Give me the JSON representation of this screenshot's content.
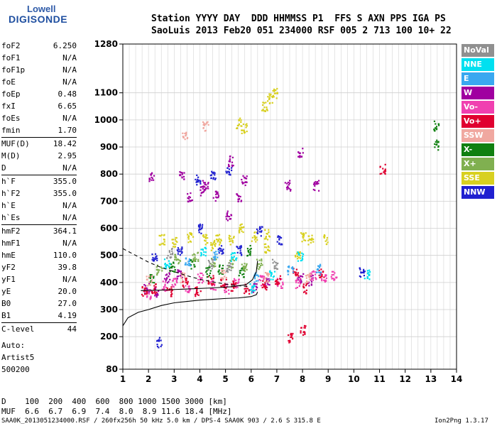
{
  "logo": {
    "line1": "Lowell",
    "line2": "DIGISONDE"
  },
  "header": {
    "labels_row": "Station YYYY DAY  DDD HHMMSS P1  FFS S AXN PPS IGA PS",
    "values_row": "SaoLuis 2013 Feb20 051 234000 RSF 005 2 713 100 10+ 22"
  },
  "params": [
    {
      "name": "foF2",
      "value": "6.250"
    },
    {
      "name": "foF1",
      "value": "N/A"
    },
    {
      "name": "foF1p",
      "value": "N/A"
    },
    {
      "name": "foE",
      "value": "N/A"
    },
    {
      "name": "foEp",
      "value": "0.48"
    },
    {
      "name": "fxI",
      "value": "6.65"
    },
    {
      "name": "foEs",
      "value": "N/A"
    },
    {
      "name": "fmin",
      "value": "1.70"
    },
    {
      "name": "MUF(D)",
      "value": "18.42"
    },
    {
      "name": "M(D)",
      "value": "2.95"
    },
    {
      "name": "D",
      "value": "N/A"
    },
    {
      "name": "h`F",
      "value": "355.0"
    },
    {
      "name": "h`F2",
      "value": "355.0"
    },
    {
      "name": "h`E",
      "value": "N/A"
    },
    {
      "name": "h`Es",
      "value": "N/A"
    },
    {
      "name": "hmF2",
      "value": "364.1"
    },
    {
      "name": "hmF1",
      "value": "N/A"
    },
    {
      "name": "hmE",
      "value": "110.0"
    },
    {
      "name": "yF2",
      "value": "39.8"
    },
    {
      "name": "yF1",
      "value": "N/A"
    },
    {
      "name": "yE",
      "value": "20.0"
    },
    {
      "name": "B0",
      "value": "27.0"
    },
    {
      "name": "B1",
      "value": "4.19"
    },
    {
      "name": "C-level",
      "value": "44"
    }
  ],
  "autoscale": {
    "line1": "Auto:",
    "line2": "Artist5",
    "line3": "500200"
  },
  "legend": [
    {
      "label": "NoVal",
      "color": "#909090"
    },
    {
      "label": "NNE",
      "color": "#00e0f0"
    },
    {
      "label": "E",
      "color": "#3aa8f0"
    },
    {
      "label": "W",
      "color": "#a000a0"
    },
    {
      "label": "Vo-",
      "color": "#f040b0"
    },
    {
      "label": "Vo+",
      "color": "#e00030"
    },
    {
      "label": "SSW",
      "color": "#f0a8a0"
    },
    {
      "label": "X-",
      "color": "#108010"
    },
    {
      "label": "X+",
      "color": "#80b050"
    },
    {
      "label": "SSE",
      "color": "#d8d020"
    },
    {
      "label": "NNW",
      "color": "#2020d0"
    }
  ],
  "muf_table": {
    "d_label": "D",
    "d_values": "100  200  400  600  800 1000 1500 3000 [km]",
    "muf_label": "MUF",
    "muf_values": "6.6  6.7  6.9  7.4  8.0  8.9 11.6 18.4 [MHz]"
  },
  "footer": {
    "left": "SAA0K_2013051234000.RSF / 260fx256h 50 kHz 5.0 km / DPS-4 SAA0K 903 / 2.6 S 315.8 E",
    "right": "Ion2Png 1.3.17"
  },
  "chart_data": {
    "type": "scatter",
    "xlim": [
      1,
      14
    ],
    "ylim": [
      80,
      1280
    ],
    "x_ticks": [
      1,
      2,
      3,
      4,
      5,
      6,
      7,
      8,
      9,
      10,
      11,
      12,
      13,
      14
    ],
    "y_ticks": [
      80,
      200,
      300,
      400,
      500,
      600,
      700,
      800,
      900,
      1000,
      1100,
      1280
    ],
    "grid": true,
    "series": [
      {
        "name": "W",
        "points": [
          [
            1.9,
            380
          ],
          [
            2.3,
            365
          ],
          [
            2.7,
            420
          ],
          [
            3.2,
            430
          ],
          [
            3.6,
            720
          ],
          [
            4.1,
            740
          ],
          [
            4.6,
            720
          ],
          [
            5.1,
            650
          ],
          [
            5.5,
            720
          ],
          [
            6.1,
            380
          ],
          [
            6.6,
            400
          ],
          [
            7.9,
            420
          ],
          [
            8.3,
            410
          ],
          [
            2.1,
            790
          ],
          [
            3.3,
            800
          ],
          [
            4.2,
            760
          ],
          [
            5.2,
            850
          ],
          [
            5.7,
            780
          ],
          [
            7.4,
            760
          ],
          [
            7.9,
            880
          ],
          [
            8.5,
            760
          ]
        ]
      },
      {
        "name": "Vo-",
        "points": [
          [
            2.0,
            360
          ],
          [
            2.6,
            390
          ],
          [
            3.0,
            400
          ],
          [
            3.5,
            380
          ],
          [
            4.0,
            420
          ],
          [
            4.5,
            390
          ],
          [
            5.0,
            380
          ],
          [
            5.4,
            400
          ],
          [
            6.4,
            410
          ],
          [
            7.1,
            400
          ],
          [
            7.8,
            400
          ],
          [
            8.4,
            430
          ],
          [
            8.8,
            420
          ],
          [
            9.2,
            430
          ]
        ]
      },
      {
        "name": "Vo+",
        "points": [
          [
            1.8,
            370
          ],
          [
            2.2,
            380
          ],
          [
            2.8,
            370
          ],
          [
            3.4,
            400
          ],
          [
            3.9,
            370
          ],
          [
            4.4,
            410
          ],
          [
            4.9,
            400
          ],
          [
            5.3,
            390
          ],
          [
            5.8,
            380
          ],
          [
            6.5,
            390
          ],
          [
            7.0,
            410
          ],
          [
            7.7,
            440
          ],
          [
            8.1,
            380
          ],
          [
            8.7,
            440
          ],
          [
            11.1,
            820
          ],
          [
            7.5,
            200
          ],
          [
            8.0,
            225
          ]
        ]
      },
      {
        "name": "X-",
        "points": [
          [
            2.1,
            420
          ],
          [
            2.9,
            460
          ],
          [
            3.7,
            470
          ],
          [
            4.3,
            440
          ],
          [
            4.8,
            450
          ],
          [
            5.6,
            440
          ],
          [
            5.9,
            520
          ],
          [
            13.2,
            980
          ],
          [
            13.2,
            910
          ]
        ]
      },
      {
        "name": "X+",
        "points": [
          [
            2.4,
            450
          ],
          [
            3.1,
            490
          ],
          [
            3.8,
            500
          ],
          [
            4.5,
            480
          ],
          [
            5.2,
            470
          ],
          [
            5.7,
            460
          ],
          [
            6.3,
            470
          ]
        ]
      },
      {
        "name": "SSE",
        "points": [
          [
            2.5,
            560
          ],
          [
            3.0,
            550
          ],
          [
            3.6,
            570
          ],
          [
            4.2,
            560
          ],
          [
            4.7,
            560
          ],
          [
            5.2,
            560
          ],
          [
            5.6,
            600
          ],
          [
            6.1,
            570
          ],
          [
            6.6,
            580
          ],
          [
            6.7,
            1080
          ],
          [
            6.9,
            1100
          ],
          [
            6.5,
            1050
          ],
          [
            8.0,
            570
          ],
          [
            8.3,
            560
          ],
          [
            8.9,
            560
          ],
          [
            5.5,
            990
          ],
          [
            5.7,
            970
          ],
          [
            4.5,
            540
          ],
          [
            6.6,
            530
          ],
          [
            7.8,
            500
          ]
        ]
      },
      {
        "name": "NNW",
        "points": [
          [
            2.4,
            180
          ],
          [
            2.2,
            500
          ],
          [
            3.2,
            520
          ],
          [
            4.0,
            600
          ],
          [
            4.8,
            520
          ],
          [
            5.5,
            520
          ],
          [
            6.3,
            590
          ],
          [
            7.1,
            560
          ],
          [
            5.1,
            810
          ],
          [
            4.5,
            800
          ],
          [
            3.9,
            780
          ],
          [
            10.3,
            440
          ]
        ]
      },
      {
        "name": "NNE",
        "points": [
          [
            2.7,
            470
          ],
          [
            4.1,
            520
          ],
          [
            5.3,
            500
          ],
          [
            6.0,
            380
          ],
          [
            6.8,
            430
          ],
          [
            7.9,
            500
          ],
          [
            10.5,
            430
          ]
        ]
      },
      {
        "name": "E",
        "points": [
          [
            3.5,
            480
          ],
          [
            4.6,
            500
          ],
          [
            6.2,
            420
          ],
          [
            7.5,
            450
          ],
          [
            8.6,
            450
          ]
        ]
      },
      {
        "name": "SSW",
        "points": [
          [
            2.0,
            410
          ],
          [
            3.3,
            420
          ],
          [
            4.9,
            430
          ],
          [
            6.6,
            420
          ],
          [
            8.2,
            420
          ],
          [
            3.4,
            950
          ],
          [
            4.2,
            980
          ]
        ]
      },
      {
        "name": "NoVal",
        "points": [
          [
            2.8,
            510
          ],
          [
            4.4,
            470
          ],
          [
            5.1,
            460
          ],
          [
            6.9,
            470
          ]
        ]
      }
    ],
    "profile_curve": [
      [
        1,
        240
      ],
      [
        1.2,
        270
      ],
      [
        1.6,
        290
      ],
      [
        2,
        300
      ],
      [
        2.5,
        315
      ],
      [
        3,
        325
      ],
      [
        3.5,
        330
      ],
      [
        4,
        335
      ],
      [
        4.5,
        338
      ],
      [
        5,
        341
      ],
      [
        5.5,
        343
      ],
      [
        6,
        348
      ],
      [
        6.2,
        355
      ],
      [
        6.25,
        365
      ]
    ],
    "trace_curve_solid": [
      [
        1.7,
        370
      ],
      [
        2.5,
        372
      ],
      [
        3.5,
        376
      ],
      [
        4.5,
        380
      ],
      [
        5.2,
        384
      ],
      [
        5.8,
        392
      ],
      [
        6.05,
        410
      ],
      [
        6.2,
        440
      ],
      [
        6.25,
        480
      ]
    ],
    "trace_curve_dashed": [
      [
        1,
        525
      ],
      [
        1.5,
        500
      ],
      [
        2,
        475
      ],
      [
        2.5,
        455
      ],
      [
        3,
        440
      ],
      [
        3.5,
        425
      ],
      [
        4,
        412
      ],
      [
        4.5,
        402
      ],
      [
        5,
        394
      ],
      [
        5.5,
        388
      ],
      [
        5.9,
        385
      ]
    ]
  }
}
